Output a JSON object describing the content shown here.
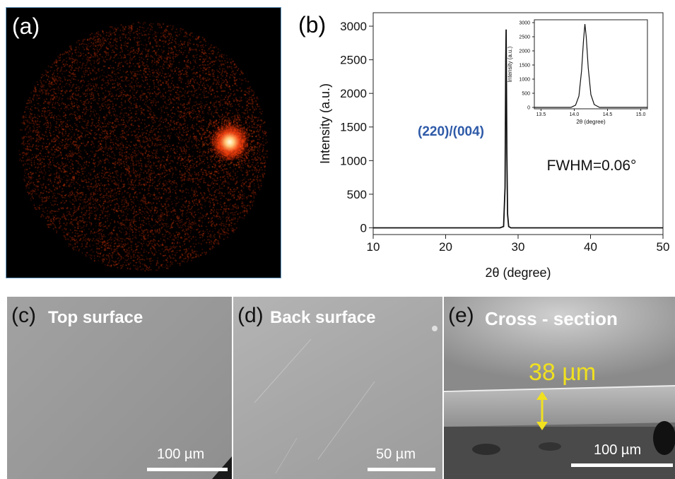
{
  "panel_a": {
    "label": "(a)"
  },
  "panel_b": {
    "label": "(b)"
  },
  "chart_data": {
    "type": "line",
    "title": "",
    "xlabel": "2θ (degree)",
    "ylabel": "Intensity (a.u.)",
    "xlim": [
      10,
      50
    ],
    "ylim": [
      -100,
      3200
    ],
    "xticks": [
      10,
      20,
      30,
      40,
      50
    ],
    "yticks": [
      0,
      500,
      1000,
      1500,
      2000,
      2500,
      3000
    ],
    "grid": false,
    "series": [
      {
        "x": [
          10,
          27.5,
          28.0,
          28.2,
          28.3,
          28.35,
          28.45,
          28.55,
          28.7,
          29.0,
          50
        ],
        "y": [
          0,
          0,
          20,
          600,
          2500,
          2950,
          1100,
          200,
          20,
          0,
          0
        ]
      }
    ],
    "annotations": {
      "peak_label": "(220)/(004)",
      "fwhm": "FWHM=0.06°"
    },
    "inset": {
      "type": "line",
      "xlabel": "2θ (degree)",
      "ylabel": "Intensity (a.u.)",
      "xlim": [
        13.4,
        15.1
      ],
      "ylim": [
        -50,
        3100
      ],
      "xticks": [
        13.5,
        14.0,
        14.5,
        15.0
      ],
      "xtick_labels": [
        "13.5",
        "14.0",
        "14.5",
        "15.0"
      ],
      "yticks": [
        0,
        500,
        1000,
        1500,
        2000,
        2500,
        3000
      ],
      "series": [
        {
          "x": [
            13.4,
            13.95,
            14.02,
            14.07,
            14.11,
            14.14,
            14.16,
            14.18,
            14.21,
            14.25,
            14.3,
            14.38,
            15.1
          ],
          "y": [
            0,
            0,
            80,
            400,
            1300,
            2400,
            2950,
            2500,
            1400,
            450,
            100,
            0,
            0
          ]
        }
      ]
    }
  },
  "panel_c": {
    "label": "(c)",
    "title": "Top surface",
    "scale": "100 µm"
  },
  "panel_d": {
    "label": "(d)",
    "title": "Back surface",
    "scale": "50 µm"
  },
  "panel_e": {
    "label": "(e)",
    "title": "Cross - section",
    "thickness": "38 µm",
    "scale": "100 µm"
  },
  "colors": {
    "peak_label": "#2e5aa8",
    "thickness": "#f0e020",
    "laue_spot": "#ff3a10"
  }
}
